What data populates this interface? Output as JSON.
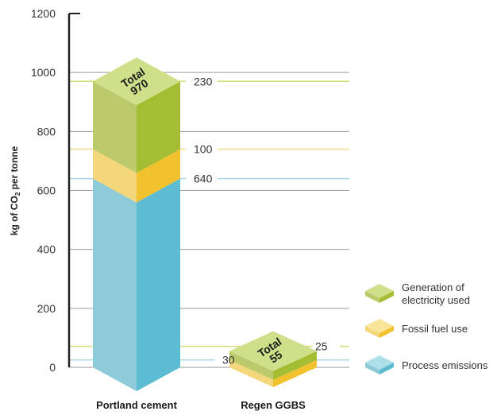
{
  "chart_data": {
    "type": "bar",
    "stacked": true,
    "ylabel_parts": [
      "kg of CO",
      "2",
      " per tonne"
    ],
    "ylim": [
      0,
      1200
    ],
    "yticks": [
      0,
      200,
      400,
      600,
      800,
      1000,
      1200
    ],
    "grid": true,
    "categories": [
      "Portland cement",
      "Regen GGBS"
    ],
    "series": [
      {
        "name": "Process emissions",
        "values": [
          640,
          0
        ]
      },
      {
        "name": "Fossil fuel use",
        "values": [
          100,
          25
        ]
      },
      {
        "name": "Generation of electricity used",
        "values": [
          230,
          30
        ]
      }
    ],
    "bar_labels": [
      {
        "category": "Portland cement",
        "segments": [
          "640",
          "100",
          "230"
        ]
      },
      {
        "category": "Regen GGBS",
        "segments": [
          "",
          "25",
          "30"
        ]
      }
    ],
    "totals": [
      {
        "line1": "Total",
        "line2": "970"
      },
      {
        "line1": "Total",
        "line2": "55"
      }
    ],
    "legend": {
      "placement": "right",
      "items": [
        {
          "lines": [
            "Generation of",
            "electricity used"
          ],
          "series": "Generation of electricity used"
        },
        {
          "lines": [
            "Fossil fuel use"
          ],
          "series": "Fossil fuel use"
        },
        {
          "lines": [
            "Process emissions"
          ],
          "series": "Process emissions"
        }
      ]
    },
    "colors": {
      "Process emissions": {
        "front": "#8ecbd9",
        "side": "#5bbcd2",
        "top": "#aee0ea"
      },
      "Fossil fuel use": {
        "front": "#f4d77a",
        "side": "#f2c12e",
        "top": "#f8e49a"
      },
      "Generation of electricity used": {
        "front": "#bdca6c",
        "side": "#a5bd33",
        "top": "#cfe08a"
      },
      "gridline": "#9a9a9a",
      "axis": "#222222",
      "leader_process": "#a9d8e6",
      "leader_fossil": "#f5dc88",
      "leader_electricity": "#d2dd7a"
    }
  }
}
